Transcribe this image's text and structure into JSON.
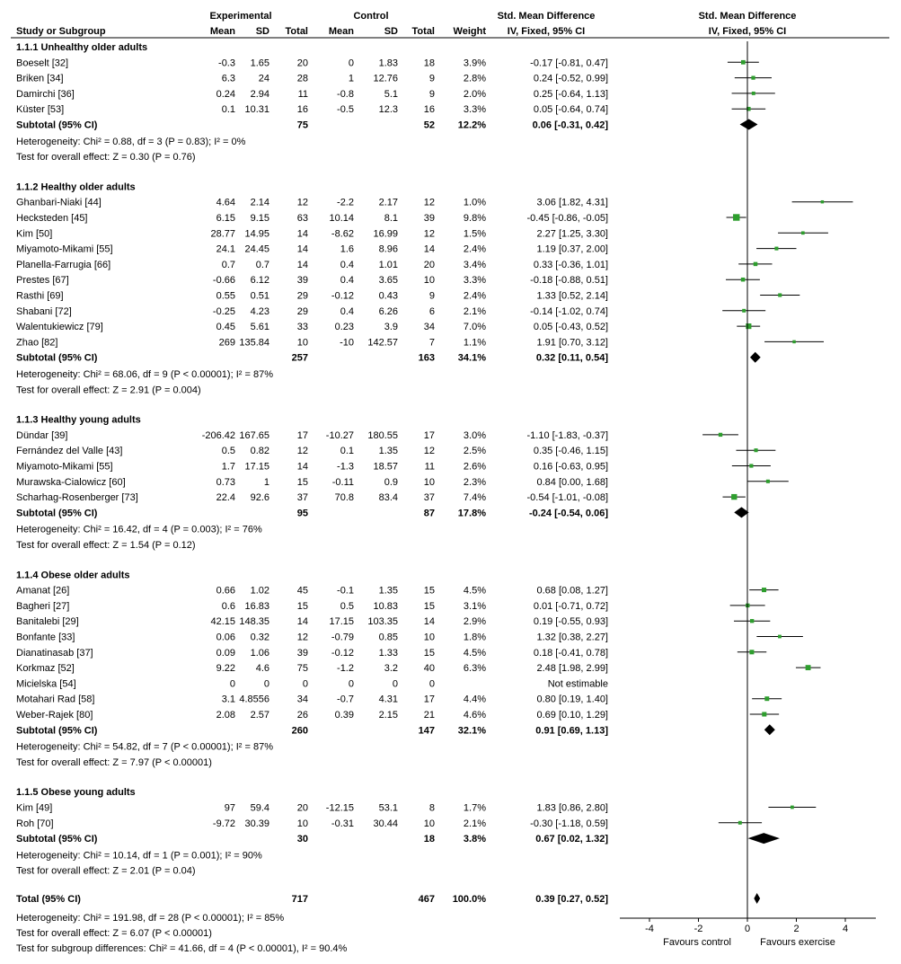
{
  "header": {
    "experimental": "Experimental",
    "control": "Control",
    "smd": "Std. Mean Difference",
    "smd_plot": "Std. Mean Difference",
    "study_col": "Study or Subgroup",
    "mean": "Mean",
    "sd": "SD",
    "total": "Total",
    "weight": "Weight",
    "method": "IV, Fixed, 95% CI",
    "method_plot": "IV, Fixed, 95% CI"
  },
  "groups": [
    {
      "title": "1.1.1 Unhealthy older adults",
      "studies": [
        {
          "name": "Boeselt [32]",
          "m1": "-0.3",
          "sd1": "1.65",
          "n1": "20",
          "m2": "0",
          "sd2": "1.83",
          "n2": "18",
          "w": "3.9%",
          "ci": "-0.17 [-0.81, 0.47]",
          "est": -0.17,
          "lo": -0.81,
          "hi": 0.47
        },
        {
          "name": "Briken [34]",
          "m1": "6.3",
          "sd1": "24",
          "n1": "28",
          "m2": "1",
          "sd2": "12.76",
          "n2": "9",
          "w": "2.8%",
          "ci": "0.24 [-0.52, 0.99]",
          "est": 0.24,
          "lo": -0.52,
          "hi": 0.99
        },
        {
          "name": "Damirchi [36]",
          "m1": "0.24",
          "sd1": "2.94",
          "n1": "11",
          "m2": "-0.8",
          "sd2": "5.1",
          "n2": "9",
          "w": "2.0%",
          "ci": "0.25 [-0.64, 1.13]",
          "est": 0.25,
          "lo": -0.64,
          "hi": 1.13
        },
        {
          "name": "Küster [53]",
          "m1": "0.1",
          "sd1": "10.31",
          "n1": "16",
          "m2": "-0.5",
          "sd2": "12.3",
          "n2": "16",
          "w": "3.3%",
          "ci": "0.05 [-0.64, 0.74]",
          "est": 0.05,
          "lo": -0.64,
          "hi": 0.74
        }
      ],
      "subtotal": {
        "label": "Subtotal (95% CI)",
        "n1": "75",
        "n2": "52",
        "w": "12.2%",
        "ci": "0.06 [-0.31, 0.42]",
        "est": 0.06,
        "lo": -0.31,
        "hi": 0.42
      },
      "het": "Heterogeneity: Chi² = 0.88, df = 3 (P = 0.83); I² = 0%",
      "test": "Test for overall effect: Z = 0.30 (P = 0.76)"
    },
    {
      "title": "1.1.2 Healthy older adults",
      "studies": [
        {
          "name": "Ghanbari-Niaki [44]",
          "m1": "4.64",
          "sd1": "2.14",
          "n1": "12",
          "m2": "-2.2",
          "sd2": "2.17",
          "n2": "12",
          "w": "1.0%",
          "ci": "3.06 [1.82, 4.31]",
          "est": 3.06,
          "lo": 1.82,
          "hi": 4.31
        },
        {
          "name": "Hecksteden [45]",
          "m1": "6.15",
          "sd1": "9.15",
          "n1": "63",
          "m2": "10.14",
          "sd2": "8.1",
          "n2": "39",
          "w": "9.8%",
          "ci": "-0.45 [-0.86, -0.05]",
          "est": -0.45,
          "lo": -0.86,
          "hi": -0.05
        },
        {
          "name": "Kim [50]",
          "m1": "28.77",
          "sd1": "14.95",
          "n1": "14",
          "m2": "-8.62",
          "sd2": "16.99",
          "n2": "12",
          "w": "1.5%",
          "ci": "2.27 [1.25, 3.30]",
          "est": 2.27,
          "lo": 1.25,
          "hi": 3.3
        },
        {
          "name": "Miyamoto-Mikami [55]",
          "m1": "24.1",
          "sd1": "24.45",
          "n1": "14",
          "m2": "1.6",
          "sd2": "8.96",
          "n2": "14",
          "w": "2.4%",
          "ci": "1.19 [0.37, 2.00]",
          "est": 1.19,
          "lo": 0.37,
          "hi": 2.0
        },
        {
          "name": "Planella-Farrugia [66]",
          "m1": "0.7",
          "sd1": "0.7",
          "n1": "14",
          "m2": "0.4",
          "sd2": "1.01",
          "n2": "20",
          "w": "3.4%",
          "ci": "0.33 [-0.36, 1.01]",
          "est": 0.33,
          "lo": -0.36,
          "hi": 1.01
        },
        {
          "name": "Prestes [67]",
          "m1": "-0.66",
          "sd1": "6.12",
          "n1": "39",
          "m2": "0.4",
          "sd2": "3.65",
          "n2": "10",
          "w": "3.3%",
          "ci": "-0.18 [-0.88, 0.51]",
          "est": -0.18,
          "lo": -0.88,
          "hi": 0.51
        },
        {
          "name": "Rasthi [69]",
          "m1": "0.55",
          "sd1": "0.51",
          "n1": "29",
          "m2": "-0.12",
          "sd2": "0.43",
          "n2": "9",
          "w": "2.4%",
          "ci": "1.33 [0.52, 2.14]",
          "est": 1.33,
          "lo": 0.52,
          "hi": 2.14
        },
        {
          "name": "Shabani [72]",
          "m1": "-0.25",
          "sd1": "4.23",
          "n1": "29",
          "m2": "0.4",
          "sd2": "6.26",
          "n2": "6",
          "w": "2.1%",
          "ci": "-0.14 [-1.02, 0.74]",
          "est": -0.14,
          "lo": -1.02,
          "hi": 0.74
        },
        {
          "name": "Walentukiewicz [79]",
          "m1": "0.45",
          "sd1": "5.61",
          "n1": "33",
          "m2": "0.23",
          "sd2": "3.9",
          "n2": "34",
          "w": "7.0%",
          "ci": "0.05 [-0.43, 0.52]",
          "est": 0.05,
          "lo": -0.43,
          "hi": 0.52
        },
        {
          "name": "Zhao [82]",
          "m1": "269",
          "sd1": "135.84",
          "n1": "10",
          "m2": "-10",
          "sd2": "142.57",
          "n2": "7",
          "w": "1.1%",
          "ci": "1.91 [0.70, 3.12]",
          "est": 1.91,
          "lo": 0.7,
          "hi": 3.12
        }
      ],
      "subtotal": {
        "label": "Subtotal (95% CI)",
        "n1": "257",
        "n2": "163",
        "w": "34.1%",
        "ci": "0.32 [0.11, 0.54]",
        "est": 0.32,
        "lo": 0.11,
        "hi": 0.54
      },
      "het": "Heterogeneity: Chi² = 68.06, df = 9 (P < 0.00001); I² = 87%",
      "test": "Test for overall effect: Z = 2.91 (P = 0.004)"
    },
    {
      "title": "1.1.3 Healthy young adults",
      "studies": [
        {
          "name": "Dündar [39]",
          "m1": "-206.42",
          "sd1": "167.65",
          "n1": "17",
          "m2": "-10.27",
          "sd2": "180.55",
          "n2": "17",
          "w": "3.0%",
          "ci": "-1.10 [-1.83, -0.37]",
          "est": -1.1,
          "lo": -1.83,
          "hi": -0.37
        },
        {
          "name": "Fernández del Valle [43]",
          "m1": "0.5",
          "sd1": "0.82",
          "n1": "12",
          "m2": "0.1",
          "sd2": "1.35",
          "n2": "12",
          "w": "2.5%",
          "ci": "0.35 [-0.46, 1.15]",
          "est": 0.35,
          "lo": -0.46,
          "hi": 1.15
        },
        {
          "name": "Miyamoto-Mikami [55]",
          "m1": "1.7",
          "sd1": "17.15",
          "n1": "14",
          "m2": "-1.3",
          "sd2": "18.57",
          "n2": "11",
          "w": "2.6%",
          "ci": "0.16 [-0.63, 0.95]",
          "est": 0.16,
          "lo": -0.63,
          "hi": 0.95
        },
        {
          "name": "Murawska-Cialowicz [60]",
          "m1": "0.73",
          "sd1": "1",
          "n1": "15",
          "m2": "-0.11",
          "sd2": "0.9",
          "n2": "10",
          "w": "2.3%",
          "ci": "0.84 [0.00, 1.68]",
          "est": 0.84,
          "lo": 0.0,
          "hi": 1.68
        },
        {
          "name": "Scharhag-Rosenberger [73]",
          "m1": "22.4",
          "sd1": "92.6",
          "n1": "37",
          "m2": "70.8",
          "sd2": "83.4",
          "n2": "37",
          "w": "7.4%",
          "ci": "-0.54 [-1.01, -0.08]",
          "est": -0.54,
          "lo": -1.01,
          "hi": -0.08
        }
      ],
      "subtotal": {
        "label": "Subtotal (95% CI)",
        "n1": "95",
        "n2": "87",
        "w": "17.8%",
        "ci": "-0.24 [-0.54, 0.06]",
        "est": -0.24,
        "lo": -0.54,
        "hi": 0.06
      },
      "het": "Heterogeneity: Chi² = 16.42, df = 4 (P = 0.003); I² = 76%",
      "test": "Test for overall effect: Z = 1.54 (P = 0.12)"
    },
    {
      "title": "1.1.4 Obese older adults",
      "studies": [
        {
          "name": "Amanat [26]",
          "m1": "0.66",
          "sd1": "1.02",
          "n1": "45",
          "m2": "-0.1",
          "sd2": "1.35",
          "n2": "15",
          "w": "4.5%",
          "ci": "0.68 [0.08, 1.27]",
          "est": 0.68,
          "lo": 0.08,
          "hi": 1.27
        },
        {
          "name": "Bagheri [27]",
          "m1": "0.6",
          "sd1": "16.83",
          "n1": "15",
          "m2": "0.5",
          "sd2": "10.83",
          "n2": "15",
          "w": "3.1%",
          "ci": "0.01 [-0.71, 0.72]",
          "est": 0.01,
          "lo": -0.71,
          "hi": 0.72
        },
        {
          "name": "Banitalebi [29]",
          "m1": "42.15",
          "sd1": "148.35",
          "n1": "14",
          "m2": "17.15",
          "sd2": "103.35",
          "n2": "14",
          "w": "2.9%",
          "ci": "0.19 [-0.55, 0.93]",
          "est": 0.19,
          "lo": -0.55,
          "hi": 0.93
        },
        {
          "name": "Bonfante [33]",
          "m1": "0.06",
          "sd1": "0.32",
          "n1": "12",
          "m2": "-0.79",
          "sd2": "0.85",
          "n2": "10",
          "w": "1.8%",
          "ci": "1.32 [0.38, 2.27]",
          "est": 1.32,
          "lo": 0.38,
          "hi": 2.27
        },
        {
          "name": "Dianatinasab [37]",
          "m1": "0.09",
          "sd1": "1.06",
          "n1": "39",
          "m2": "-0.12",
          "sd2": "1.33",
          "n2": "15",
          "w": "4.5%",
          "ci": "0.18 [-0.41, 0.78]",
          "est": 0.18,
          "lo": -0.41,
          "hi": 0.78
        },
        {
          "name": "Korkmaz [52]",
          "m1": "9.22",
          "sd1": "4.6",
          "n1": "75",
          "m2": "-1.2",
          "sd2": "3.2",
          "n2": "40",
          "w": "6.3%",
          "ci": "2.48 [1.98, 2.99]",
          "est": 2.48,
          "lo": 1.98,
          "hi": 2.99
        },
        {
          "name": "Micielska [54]",
          "m1": "0",
          "sd1": "0",
          "n1": "0",
          "m2": "0",
          "sd2": "0",
          "n2": "0",
          "w": "",
          "ci": "Not estimable",
          "est": null,
          "lo": null,
          "hi": null
        },
        {
          "name": "Motahari Rad [58]",
          "m1": "3.1",
          "sd1": "4.8556",
          "n1": "34",
          "m2": "-0.7",
          "sd2": "4.31",
          "n2": "17",
          "w": "4.4%",
          "ci": "0.80 [0.19, 1.40]",
          "est": 0.8,
          "lo": 0.19,
          "hi": 1.4
        },
        {
          "name": "Weber-Rajek [80]",
          "m1": "2.08",
          "sd1": "2.57",
          "n1": "26",
          "m2": "0.39",
          "sd2": "2.15",
          "n2": "21",
          "w": "4.6%",
          "ci": "0.69 [0.10, 1.29]",
          "est": 0.69,
          "lo": 0.1,
          "hi": 1.29
        }
      ],
      "subtotal": {
        "label": "Subtotal (95% CI)",
        "n1": "260",
        "n2": "147",
        "w": "32.1%",
        "ci": "0.91 [0.69, 1.13]",
        "est": 0.91,
        "lo": 0.69,
        "hi": 1.13
      },
      "het": "Heterogeneity: Chi² = 54.82, df = 7 (P < 0.00001); I² = 87%",
      "test": "Test for overall effect: Z = 7.97 (P < 0.00001)"
    },
    {
      "title": "1.1.5 Obese young adults",
      "studies": [
        {
          "name": "Kim [49]",
          "m1": "97",
          "sd1": "59.4",
          "n1": "20",
          "m2": "-12.15",
          "sd2": "53.1",
          "n2": "8",
          "w": "1.7%",
          "ci": "1.83 [0.86, 2.80]",
          "est": 1.83,
          "lo": 0.86,
          "hi": 2.8
        },
        {
          "name": "Roh [70]",
          "m1": "-9.72",
          "sd1": "30.39",
          "n1": "10",
          "m2": "-0.31",
          "sd2": "30.44",
          "n2": "10",
          "w": "2.1%",
          "ci": "-0.30 [-1.18, 0.59]",
          "est": -0.3,
          "lo": -1.18,
          "hi": 0.59
        }
      ],
      "subtotal": {
        "label": "Subtotal (95% CI)",
        "n1": "30",
        "n2": "18",
        "w": "3.8%",
        "ci": "0.67 [0.02, 1.32]",
        "est": 0.67,
        "lo": 0.02,
        "hi": 1.32
      },
      "het": "Heterogeneity: Chi² = 10.14, df = 1 (P = 0.001); I² = 90%",
      "test": "Test for overall effect: Z = 2.01 (P = 0.04)"
    }
  ],
  "total": {
    "label": "Total (95% CI)",
    "n1": "717",
    "n2": "467",
    "w": "100.0%",
    "ci": "0.39 [0.27, 0.52]",
    "est": 0.39,
    "lo": 0.27,
    "hi": 0.52
  },
  "footer": [
    "Heterogeneity: Chi² = 191.98, df = 28 (P < 0.00001); I² = 85%",
    "Test for overall effect: Z = 6.07 (P < 0.00001)",
    "Test for subgroup differences: Chi² = 41.66, df = 4 (P < 0.00001), I² = 90.4%"
  ],
  "axis": {
    "ticks": [
      -4,
      -2,
      0,
      2,
      4
    ],
    "tick_labels": [
      "-4",
      "-2",
      "0",
      "2",
      "4"
    ],
    "favours_left": "Favours control",
    "favours_right": "Favours exercise"
  },
  "colors": {
    "marker": "#2e9e2e",
    "diamond": "#000000",
    "line": "#000000"
  },
  "chart_data": {
    "type": "forest",
    "title": "",
    "xlabel": "Std. Mean Difference, IV, Fixed, 95% CI",
    "xlim": [
      -4,
      4
    ],
    "reference_line": 0,
    "axis_left_label": "Favours control",
    "axis_right_label": "Favours exercise",
    "overall": {
      "estimate": 0.39,
      "ci": [
        0.27,
        0.52
      ]
    }
  }
}
